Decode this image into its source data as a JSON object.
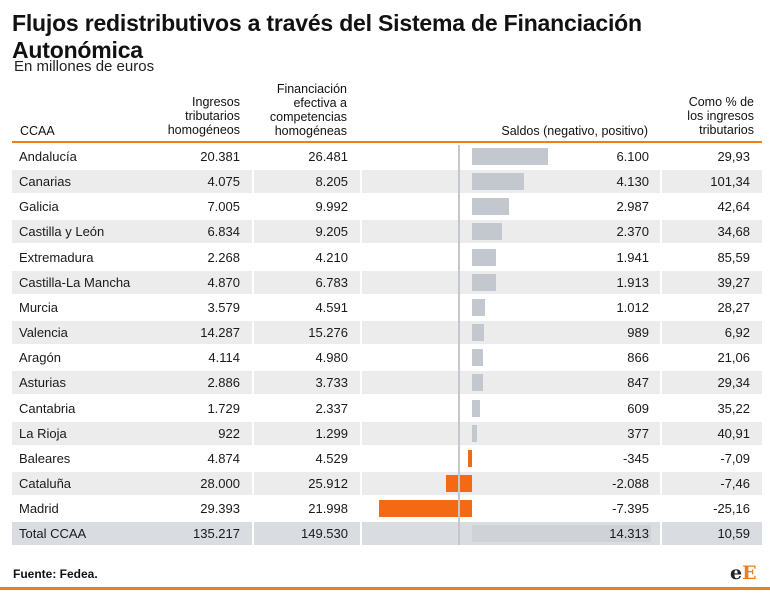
{
  "title": "Flujos redistributivos a través del Sistema de Financiación Autonómica",
  "subtitle": "En millones de euros",
  "headers": {
    "ccaa": "CCAA",
    "ingresos": [
      "Ingresos",
      "tributarios",
      "homogéneos"
    ],
    "financiacion": [
      "Financiación",
      "efectiva a",
      "competencias",
      "homogéneas"
    ],
    "saldos": "Saldos (negativo, positivo)",
    "pct": [
      "Como % de",
      "los ingresos",
      "tributarios"
    ]
  },
  "chart_data": {
    "type": "table",
    "saldo_range": [
      -7395,
      14313
    ],
    "colors": {
      "positive": "#c3c8cf",
      "negative": "#f46a14",
      "header_line": "#f07d17"
    },
    "rows": [
      {
        "ccaa": "Andalucía",
        "ingresos": "20.381",
        "financiacion": "26.481",
        "saldo": 6100,
        "saldo_label": "6.100",
        "pct": "29,93"
      },
      {
        "ccaa": "Canarias",
        "ingresos": "4.075",
        "financiacion": "8.205",
        "saldo": 4130,
        "saldo_label": "4.130",
        "pct": "101,34"
      },
      {
        "ccaa": "Galicia",
        "ingresos": "7.005",
        "financiacion": "9.992",
        "saldo": 2987,
        "saldo_label": "2.987",
        "pct": "42,64"
      },
      {
        "ccaa": "Castilla y León",
        "ingresos": "6.834",
        "financiacion": "9.205",
        "saldo": 2370,
        "saldo_label": "2.370",
        "pct": "34,68"
      },
      {
        "ccaa": "Extremadura",
        "ingresos": "2.268",
        "financiacion": "4.210",
        "saldo": 1941,
        "saldo_label": "1.941",
        "pct": "85,59"
      },
      {
        "ccaa": "Castilla-La Mancha",
        "ingresos": "4.870",
        "financiacion": "6.783",
        "saldo": 1913,
        "saldo_label": "1.913",
        "pct": "39,27"
      },
      {
        "ccaa": "Murcia",
        "ingresos": "3.579",
        "financiacion": "4.591",
        "saldo": 1012,
        "saldo_label": "1.012",
        "pct": "28,27"
      },
      {
        "ccaa": "Valencia",
        "ingresos": "14.287",
        "financiacion": "15.276",
        "saldo": 989,
        "saldo_label": "989",
        "pct": "6,92"
      },
      {
        "ccaa": "Aragón",
        "ingresos": "4.114",
        "financiacion": "4.980",
        "saldo": 866,
        "saldo_label": "866",
        "pct": "21,06"
      },
      {
        "ccaa": "Asturias",
        "ingresos": "2.886",
        "financiacion": "3.733",
        "saldo": 847,
        "saldo_label": "847",
        "pct": "29,34"
      },
      {
        "ccaa": "Cantabria",
        "ingresos": "1.729",
        "financiacion": "2.337",
        "saldo": 609,
        "saldo_label": "609",
        "pct": "35,22"
      },
      {
        "ccaa": "La Rioja",
        "ingresos": "922",
        "financiacion": "1.299",
        "saldo": 377,
        "saldo_label": "377",
        "pct": "40,91"
      },
      {
        "ccaa": "Baleares",
        "ingresos": "4.874",
        "financiacion": "4.529",
        "saldo": -345,
        "saldo_label": "-345",
        "pct": "-7,09"
      },
      {
        "ccaa": "Cataluña",
        "ingresos": "28.000",
        "financiacion": "25.912",
        "saldo": -2088,
        "saldo_label": "-2.088",
        "pct": "-7,46"
      },
      {
        "ccaa": "Madrid",
        "ingresos": "29.393",
        "financiacion": "21.998",
        "saldo": -7395,
        "saldo_label": "-7.395",
        "pct": "-25,16"
      }
    ],
    "total": {
      "ccaa": "Total CCAA",
      "ingresos": "135.217",
      "financiacion": "149.530",
      "saldo": 14313,
      "saldo_label": "14.313",
      "pct": "10,59"
    }
  },
  "footer": "Fuente: Fedea.",
  "logo": {
    "left": "e",
    "right": "E"
  }
}
